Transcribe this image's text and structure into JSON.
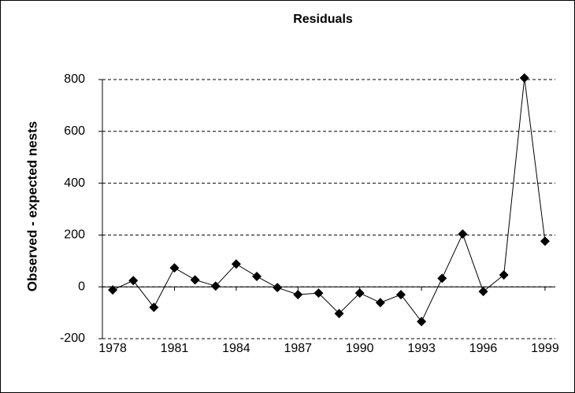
{
  "chart_data": {
    "type": "line",
    "title": "Residuals",
    "ylabel": "Observed - expected nests",
    "x": [
      1978,
      1979,
      1980,
      1981,
      1982,
      1983,
      1984,
      1985,
      1986,
      1987,
      1988,
      1989,
      1990,
      1991,
      1992,
      1993,
      1994,
      1995,
      1996,
      1997,
      1998,
      1999
    ],
    "series": [
      {
        "name": "Residuals",
        "color": "#000000",
        "values": [
          -12,
          24,
          -79,
          73,
          27,
          3,
          88,
          40,
          -3,
          -30,
          -24,
          -103,
          -24,
          -61,
          -30,
          -134,
          33,
          204,
          -18,
          46,
          806,
          176
        ]
      }
    ],
    "xlim": [
      1977.5,
      1999.5
    ],
    "xticks": [
      1978,
      1981,
      1984,
      1987,
      1990,
      1993,
      1996,
      1999
    ],
    "ylim": [
      -200,
      800
    ],
    "yticks": [
      -200,
      0,
      200,
      400,
      600,
      800
    ],
    "grid": true
  }
}
